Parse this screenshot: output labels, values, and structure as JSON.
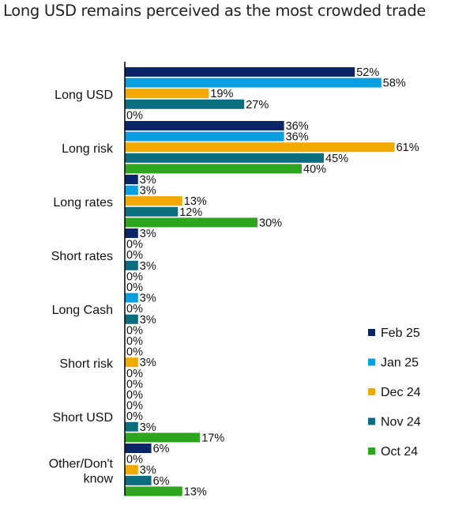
{
  "chart_data": {
    "type": "bar",
    "orientation": "horizontal",
    "title": "Long USD remains perceived as the most crowded trade",
    "xlabel": "",
    "ylabel": "",
    "xlim": [
      0,
      70
    ],
    "grid": false,
    "legend_position": "right",
    "categories": [
      "Long USD",
      "Long risk",
      "Long rates",
      "Short rates",
      "Long Cash",
      "Short risk",
      "Short USD",
      "Other/Don't know"
    ],
    "series": [
      {
        "name": "Feb 25",
        "color": "#0a2568",
        "values": [
          52,
          36,
          3,
          3,
          0,
          0,
          0,
          6
        ]
      },
      {
        "name": "Jan 25",
        "color": "#0a9fe0",
        "values": [
          58,
          36,
          3,
          0,
          3,
          0,
          0,
          0
        ]
      },
      {
        "name": "Dec 24",
        "color": "#f2a900",
        "values": [
          19,
          61,
          13,
          0,
          0,
          3,
          0,
          3
        ]
      },
      {
        "name": "Nov 24",
        "color": "#0b6e7f",
        "values": [
          27,
          45,
          12,
          3,
          3,
          0,
          3,
          6
        ]
      },
      {
        "name": "Oct 24",
        "color": "#2da51e",
        "values": [
          0,
          40,
          30,
          0,
          0,
          0,
          17,
          13
        ]
      }
    ],
    "value_suffix": "%"
  }
}
